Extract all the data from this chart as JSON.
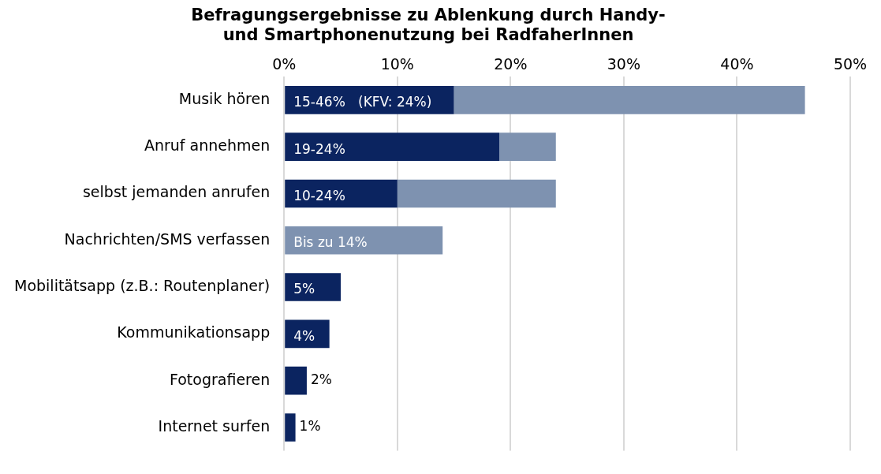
{
  "chart_data": {
    "type": "bar",
    "orientation": "horizontal",
    "stacked": true,
    "title": "Befragungsergebnisse zu Ablenkung durch Handy- und Smartphonenutzung bei RadfaherInnen",
    "categories": [
      "Musik hören",
      "Anruf annehmen",
      "selbst jemanden anrufen",
      "Nachrichten/SMS verfassen",
      "Mobilitätsapp (z.B.: Routenplaner)",
      "Kommunikationsapp",
      "Fotografieren",
      "Internet surfen"
    ],
    "series": [
      {
        "color": "#0b2460",
        "values": [
          15,
          19,
          10,
          null,
          5,
          4,
          2,
          1
        ],
        "value_labels": [
          "15-46%   (KFV: 24%)",
          "19-24%",
          "10-24%",
          null,
          "5%",
          "4%",
          "2%",
          "1%"
        ]
      },
      {
        "color": "#7e92b0",
        "values": [
          31,
          5,
          14,
          14,
          null,
          null,
          null,
          null
        ],
        "value_labels": [
          null,
          null,
          null,
          "Bis zu 14%",
          null,
          null,
          null,
          null
        ]
      }
    ],
    "xlim": [
      0,
      50
    ],
    "xticks": [
      {
        "value": 0,
        "label": "0%"
      },
      {
        "value": 10,
        "label": "10%"
      },
      {
        "value": 20,
        "label": "20%"
      },
      {
        "value": 30,
        "label": "30%"
      },
      {
        "value": 40,
        "label": "40%"
      },
      {
        "value": 50,
        "label": "50%"
      }
    ],
    "grid": "x"
  }
}
